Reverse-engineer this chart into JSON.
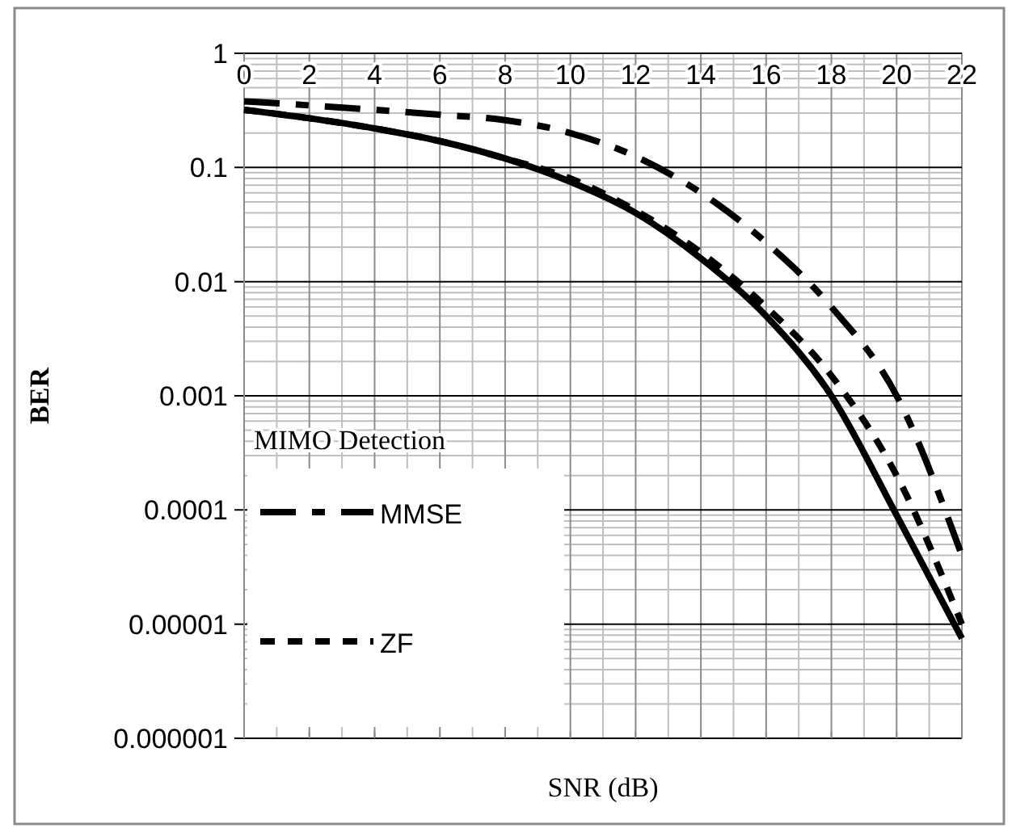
{
  "chart_data": {
    "type": "line",
    "xlabel": "SNR (dB)",
    "ylabel": "BER",
    "legend_title": "MIMO Detection",
    "x": [
      0,
      2,
      4,
      6,
      8,
      10,
      12,
      14,
      16,
      18,
      20,
      22
    ],
    "series": [
      {
        "color": "#000000",
        "line_style": "solid",
        "values": [
          0.32,
          0.27,
          0.22,
          0.17,
          0.12,
          0.075,
          0.04,
          0.016,
          0.005,
          0.001,
          9e-05,
          7.5e-06
        ]
      },
      {
        "name": "MMSE",
        "color": "#000000",
        "line_style": "longdash",
        "values": [
          0.38,
          0.35,
          0.32,
          0.29,
          0.26,
          0.2,
          0.125,
          0.06,
          0.022,
          0.006,
          0.001,
          4e-05
        ]
      },
      {
        "name": "ZF",
        "color": "#000000",
        "line_style": "dashed",
        "values": [
          0.32,
          0.27,
          0.22,
          0.17,
          0.12,
          0.08,
          0.042,
          0.018,
          0.006,
          0.0015,
          0.0002,
          1e-05
        ]
      }
    ],
    "log": "y",
    "xlim": [
      0,
      22
    ],
    "xticks": [
      0,
      2,
      4,
      6,
      8,
      10,
      12,
      14,
      16,
      18,
      20,
      22
    ],
    "ylim": [
      1e-06,
      1
    ],
    "yticks": [
      1,
      0.1,
      0.01,
      0.001,
      {
        "value": 0.0001,
        "label": "0.0001"
      },
      {
        "value": 1e-05,
        "label": "0.00001"
      },
      {
        "value": 1e-06,
        "label": "0.000001"
      }
    ],
    "grid": true,
    "legend": "bottom left"
  }
}
